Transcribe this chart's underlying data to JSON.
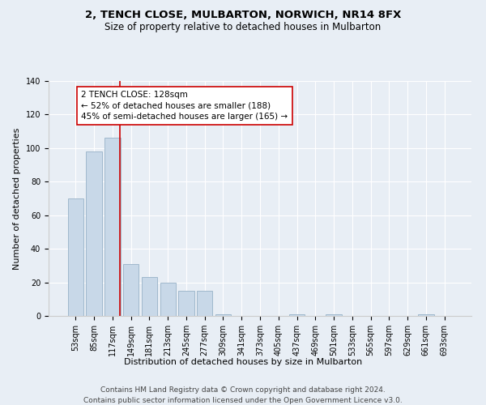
{
  "title": "2, TENCH CLOSE, MULBARTON, NORWICH, NR14 8FX",
  "subtitle": "Size of property relative to detached houses in Mulbarton",
  "xlabel_bottom": "Distribution of detached houses by size in Mulbarton",
  "ylabel": "Number of detached properties",
  "bar_color": "#c8d8e8",
  "bar_edgecolor": "#a0b8cc",
  "categories": [
    "53sqm",
    "85sqm",
    "117sqm",
    "149sqm",
    "181sqm",
    "213sqm",
    "245sqm",
    "277sqm",
    "309sqm",
    "341sqm",
    "373sqm",
    "405sqm",
    "437sqm",
    "469sqm",
    "501sqm",
    "533sqm",
    "565sqm",
    "597sqm",
    "629sqm",
    "661sqm",
    "693sqm"
  ],
  "values": [
    70,
    98,
    106,
    31,
    23,
    20,
    15,
    15,
    1,
    0,
    0,
    0,
    1,
    0,
    1,
    0,
    0,
    0,
    0,
    1,
    0
  ],
  "vline_x_index": 2,
  "vline_color": "#cc0000",
  "annotation_text": "2 TENCH CLOSE: 128sqm\n← 52% of detached houses are smaller (188)\n45% of semi-detached houses are larger (165) →",
  "annotation_box_color": "#ffffff",
  "annotation_box_edgecolor": "#cc0000",
  "ylim": [
    0,
    140
  ],
  "yticks": [
    0,
    20,
    40,
    60,
    80,
    100,
    120,
    140
  ],
  "footer_line1": "Contains HM Land Registry data © Crown copyright and database right 2024.",
  "footer_line2": "Contains public sector information licensed under the Open Government Licence v3.0.",
  "background_color": "#e8eef5",
  "plot_background_color": "#e8eef5",
  "title_fontsize": 9.5,
  "subtitle_fontsize": 8.5,
  "tick_fontsize": 7,
  "ylabel_fontsize": 8,
  "annotation_fontsize": 7.5,
  "footer_fontsize": 6.5,
  "xlabel_fontsize": 8
}
